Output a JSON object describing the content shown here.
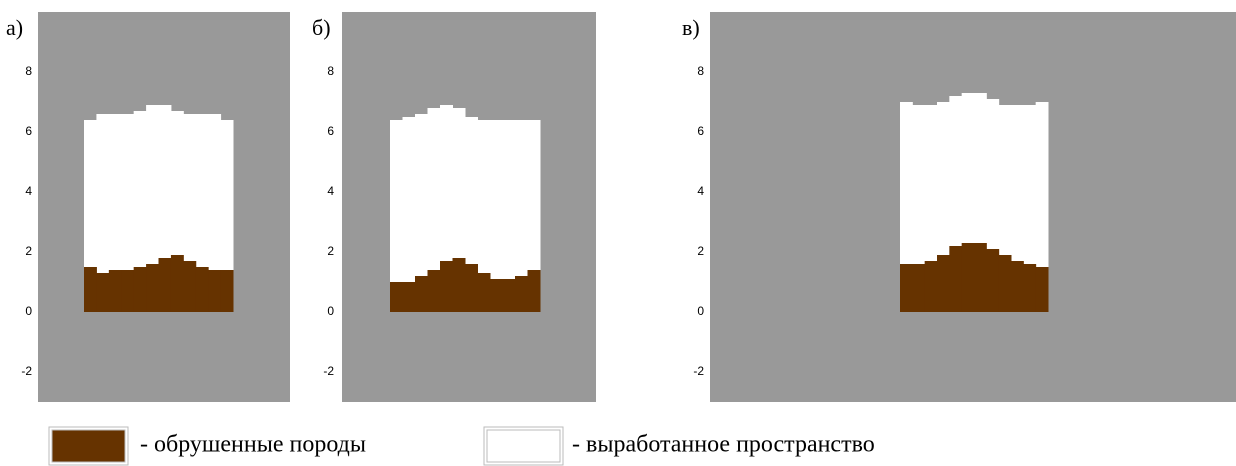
{
  "chart_data": [
    {
      "type": "profile",
      "title": "а)",
      "ylim": [
        -3,
        10
      ],
      "yticks": [
        -2,
        0,
        2,
        4,
        6,
        8
      ],
      "series": [
        {
          "color": "#ffffff",
          "values": [
            6.4,
            6.6,
            6.6,
            6.6,
            6.7,
            6.9,
            6.9,
            6.7,
            6.6,
            6.6,
            6.6,
            6.4
          ]
        },
        {
          "color": "#663300",
          "values": [
            1.5,
            1.3,
            1.4,
            1.4,
            1.5,
            1.6,
            1.8,
            1.9,
            1.7,
            1.5,
            1.4,
            1.4
          ]
        }
      ]
    },
    {
      "type": "profile",
      "title": "б)",
      "ylim": [
        -3,
        10
      ],
      "yticks": [
        -2,
        0,
        2,
        4,
        6,
        8
      ],
      "series": [
        {
          "color": "#ffffff",
          "values": [
            6.4,
            6.5,
            6.6,
            6.8,
            6.9,
            6.8,
            6.5,
            6.4,
            6.4,
            6.4,
            6.4,
            6.4
          ]
        },
        {
          "color": "#663300",
          "values": [
            1.0,
            1.0,
            1.2,
            1.4,
            1.7,
            1.8,
            1.6,
            1.3,
            1.1,
            1.1,
            1.2,
            1.4
          ]
        }
      ]
    },
    {
      "type": "profile",
      "title": "в)",
      "ylim": [
        -3,
        10
      ],
      "yticks": [
        -2,
        0,
        2,
        4,
        6,
        8
      ],
      "series": [
        {
          "color": "#ffffff",
          "values": [
            7.0,
            6.9,
            6.9,
            7.0,
            7.2,
            7.3,
            7.3,
            7.1,
            6.9,
            6.9,
            6.9,
            7.0
          ]
        },
        {
          "color": "#663300",
          "values": [
            1.6,
            1.6,
            1.7,
            1.9,
            2.2,
            2.3,
            2.3,
            2.1,
            1.9,
            1.7,
            1.6,
            1.5
          ]
        }
      ]
    }
  ],
  "legend": [
    {
      "name": "- обрушенные породы",
      "color": "#663300"
    },
    {
      "name": "- выработанное пространство",
      "color": "#ffffff"
    }
  ],
  "background": "#999999"
}
